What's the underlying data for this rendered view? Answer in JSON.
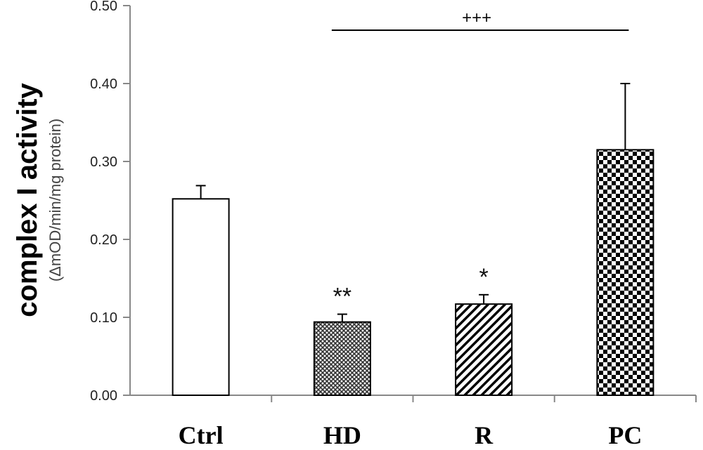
{
  "chart_data": {
    "type": "bar",
    "title": "",
    "ylabel": "complex I activity",
    "ylabel_sub": "(ΔmOD/min/mg protein)",
    "xlabel": "",
    "ylim": [
      0,
      0.5
    ],
    "yticks": [
      "0.00",
      "0.10",
      "0.20",
      "0.30",
      "0.40",
      "0.50"
    ],
    "ytick_values": [
      0,
      0.1,
      0.2,
      0.3,
      0.4,
      0.5
    ],
    "categories": [
      "Ctrl",
      "HD",
      "R",
      "PC"
    ],
    "values": [
      0.252,
      0.094,
      0.117,
      0.315
    ],
    "errors": [
      0.017,
      0.01,
      0.012,
      0.085
    ],
    "patterns": [
      "none",
      "crosshatch",
      "diagonal",
      "checker"
    ],
    "annotations": [
      "",
      "**",
      "*",
      ""
    ],
    "significance": {
      "from": "HD",
      "to": "PC",
      "label": "+++"
    },
    "grid": false,
    "legend": "none"
  }
}
